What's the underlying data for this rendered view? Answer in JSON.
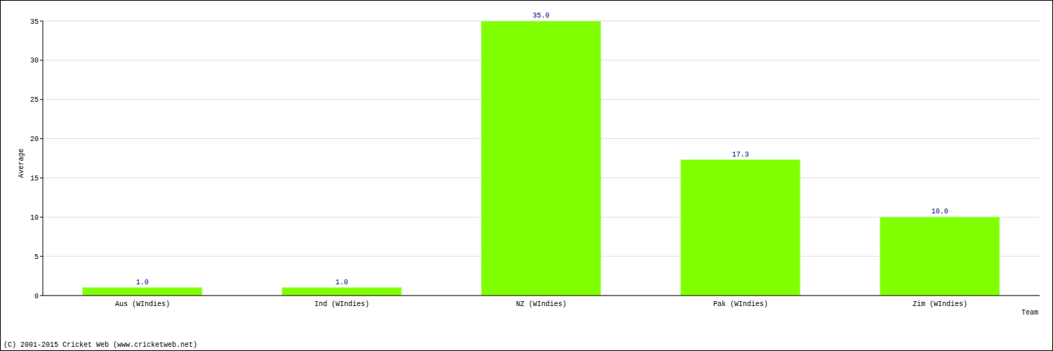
{
  "chart_data": {
    "type": "bar",
    "x_label": "Team",
    "y_label": "Average",
    "annotations": [
      "(C) 2001-2015 Cricket Web (www.cricketweb.net)"
    ],
    "categories": [
      "Aus (WIndies)",
      "Ind (WIndies)",
      "NZ (WIndies)",
      "Pak (WIndies)",
      "Zim (WIndies)"
    ],
    "values": [
      1,
      1,
      35,
      17.3,
      10
    ],
    "value_labels": [
      "1.0",
      "1.0",
      "35.0",
      "17.3",
      "10.0"
    ],
    "data_labels": true,
    "color": "#80ff00",
    "ylim": [
      0,
      35
    ],
    "yticks": [
      0,
      5,
      10,
      15,
      20,
      25,
      30,
      35
    ],
    "grid": true
  }
}
